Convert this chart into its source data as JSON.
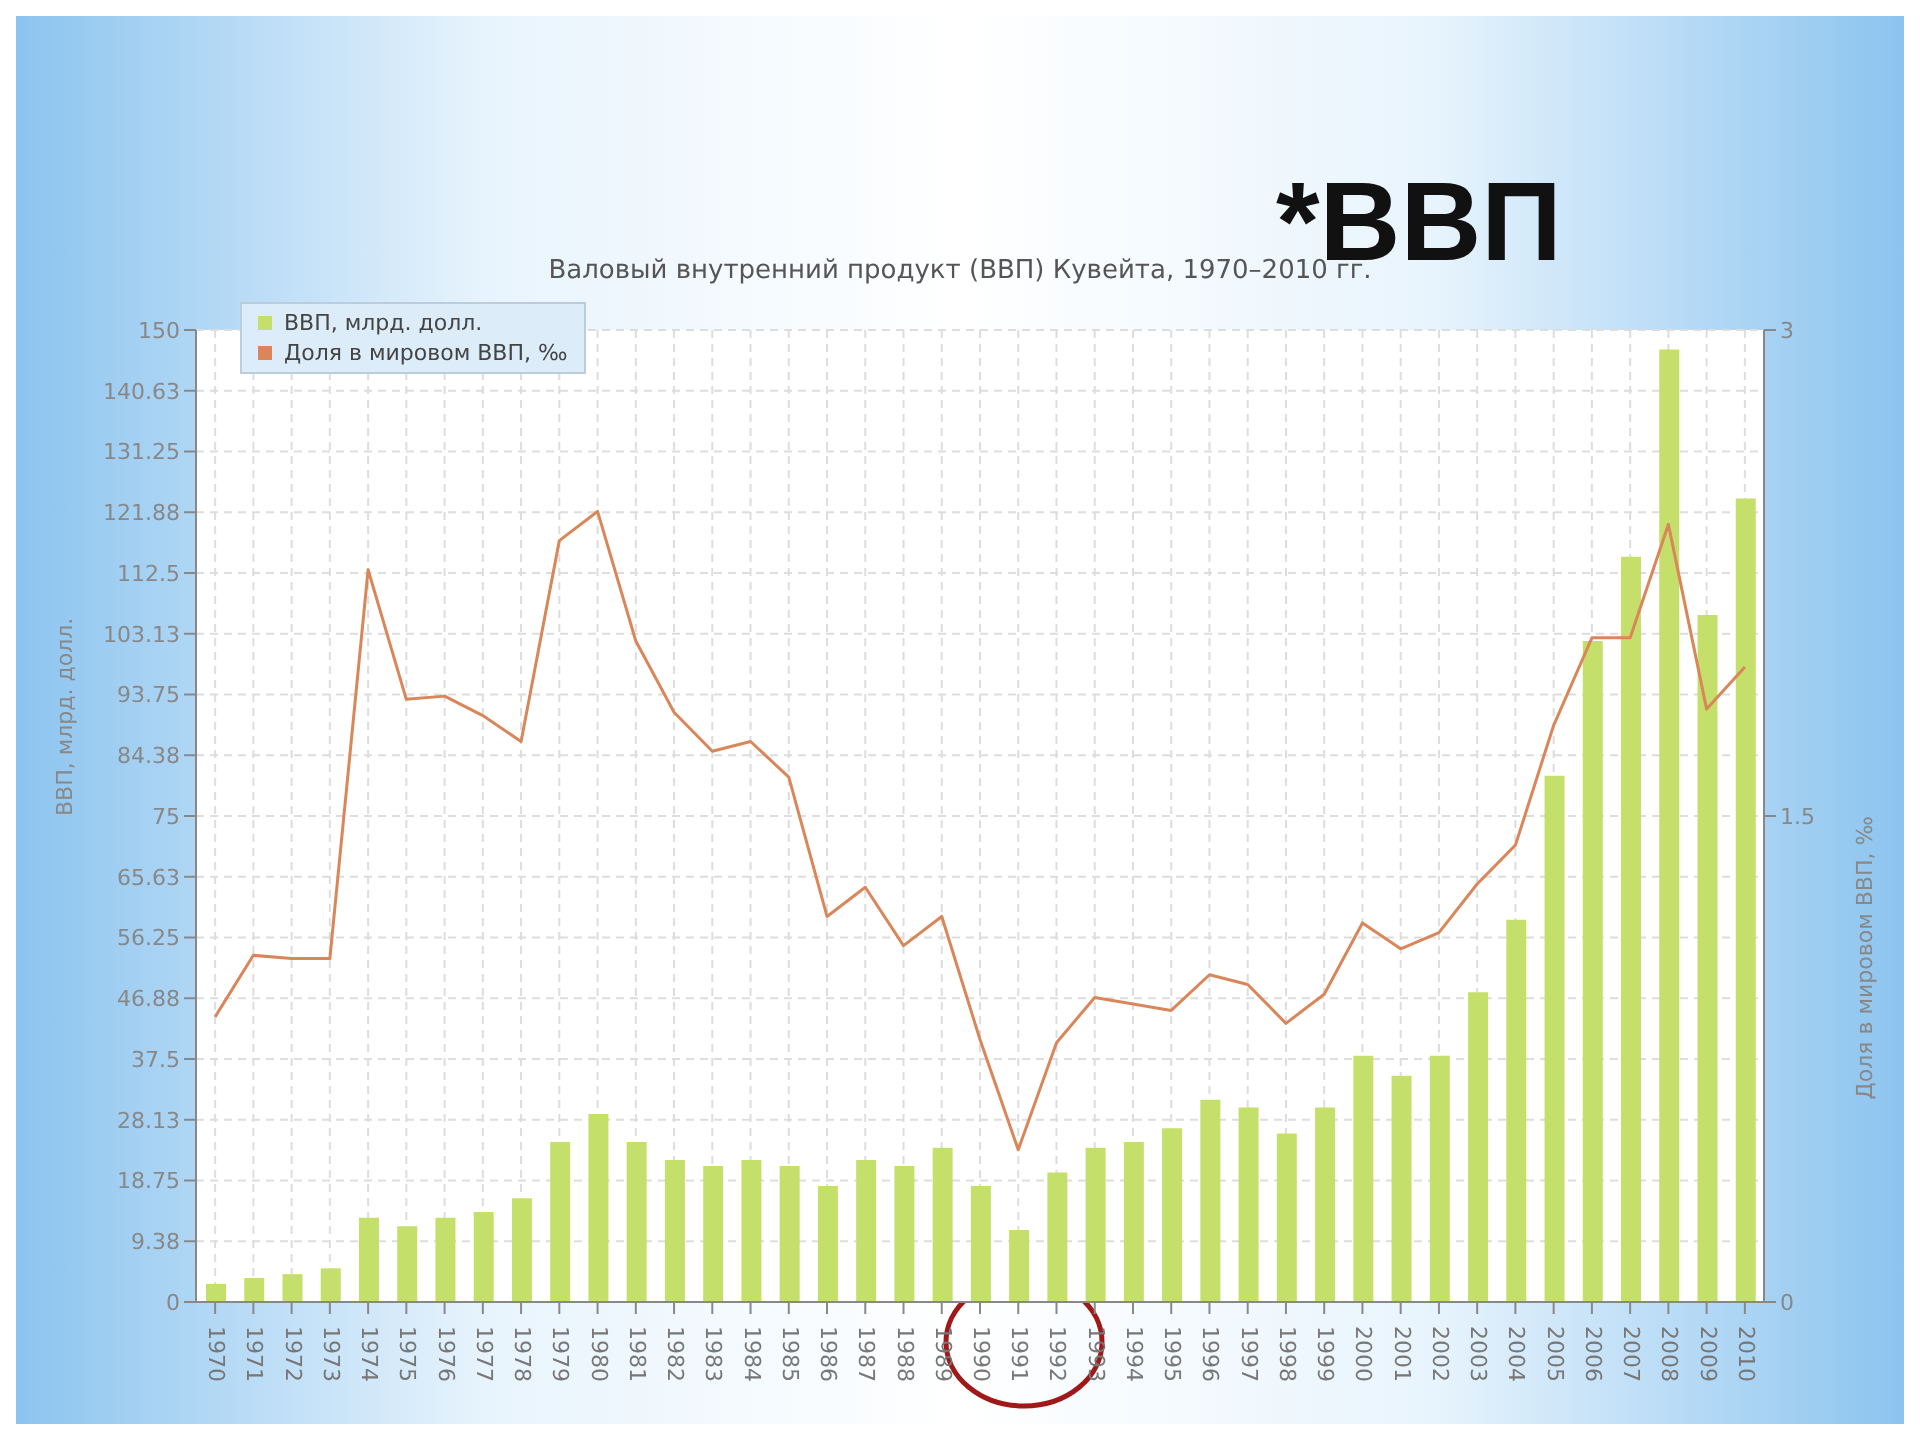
{
  "chart_data": {
    "type": "bar",
    "title": "*ВВП",
    "subtitle": "Валовый внутренний продукт (ВВП) Кувейта, 1970–2010 гг.",
    "ylabel": "ВВП, млрд. долл.",
    "y2label": "Доля в мировом ВВП, ‰",
    "categories": [
      "1970",
      "1971",
      "1972",
      "1973",
      "1974",
      "1975",
      "1976",
      "1977",
      "1978",
      "1979",
      "1980",
      "1981",
      "1982",
      "1983",
      "1984",
      "1985",
      "1986",
      "1987",
      "1988",
      "1989",
      "1990",
      "1991",
      "1992",
      "1993",
      "1994",
      "1995",
      "1996",
      "1997",
      "1998",
      "1999",
      "2000",
      "2001",
      "2002",
      "2003",
      "2004",
      "2005",
      "2006",
      "2007",
      "2008",
      "2009",
      "2010"
    ],
    "series": [
      {
        "name": "ВВП, млрд. долл.",
        "color": "#c5e06a",
        "values": [
          2.8,
          3.7,
          4.3,
          5.2,
          13,
          11.7,
          13,
          13.9,
          16,
          24.7,
          29,
          24.7,
          21.9,
          21,
          21.9,
          21,
          17.9,
          21.9,
          21,
          23.8,
          17.9,
          11.1,
          20,
          23.8,
          24.7,
          26.8,
          31.2,
          30,
          26,
          30,
          38,
          34.9,
          38,
          47.8,
          59,
          81.2,
          102,
          115,
          147,
          106,
          124
        ]
      },
      {
        "name": "Доля в мировом ВВП, ‰",
        "type": "line",
        "axis": "y2",
        "color": "#d9875a",
        "values": [
          0.88,
          1.07,
          1.06,
          1.06,
          2.26,
          1.86,
          1.87,
          1.81,
          1.73,
          2.35,
          2.44,
          2.04,
          1.82,
          1.7,
          1.73,
          1.62,
          1.19,
          1.28,
          1.1,
          1.19,
          0.81,
          0.47,
          0.8,
          0.94,
          0.92,
          0.9,
          1.01,
          0.98,
          0.86,
          0.95,
          1.17,
          1.09,
          1.14,
          1.29,
          1.41,
          1.78,
          2.05,
          2.05,
          2.4,
          1.83,
          1.96
        ]
      }
    ],
    "ylim": [
      0,
      150
    ],
    "yticks": [
      0,
      {
        "value": 9.375,
        "label": "9.38"
      },
      18.75,
      {
        "value": 28.125,
        "label": "28.13"
      },
      37.5,
      {
        "value": 46.875,
        "label": "46.88"
      },
      56.25,
      {
        "value": 65.625,
        "label": "65.63"
      },
      75,
      {
        "value": 84.375,
        "label": "84.38"
      },
      93.75,
      {
        "value": 103.125,
        "label": "103.13"
      },
      112.5,
      {
        "value": 121.875,
        "label": "121.88"
      },
      131.25,
      {
        "value": 140.625,
        "label": "140.63"
      },
      150
    ],
    "y2lim": [
      0,
      3
    ],
    "y2ticks": [
      0,
      1.5,
      3
    ],
    "grid": true,
    "legend": "top left",
    "marker": "none",
    "line_style": "solid"
  }
}
